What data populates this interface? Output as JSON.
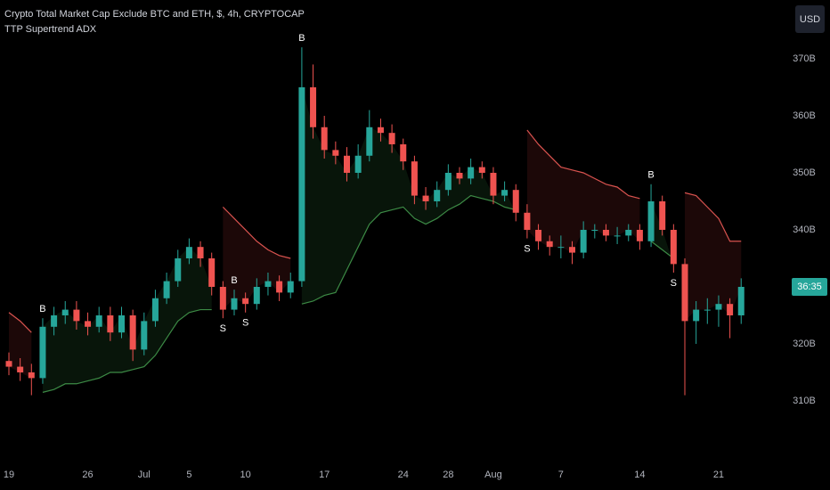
{
  "chart_data": {
    "type": "candlestick",
    "title": "Crypto Total Market Cap Exclude BTC and ETH, $, 4h, CRYPTOCAP",
    "subtitle": "TTP Supertrend ADX",
    "currency_button": "USD",
    "countdown": "36:35",
    "categories": [
      "19",
      null,
      null,
      null,
      null,
      null,
      null,
      "26",
      null,
      null,
      null,
      null,
      "Jul",
      null,
      null,
      null,
      "5",
      null,
      null,
      null,
      null,
      "10",
      null,
      null,
      null,
      null,
      null,
      null,
      "17",
      null,
      null,
      null,
      null,
      null,
      null,
      "24",
      null,
      null,
      null,
      "28",
      null,
      null,
      null,
      "Aug",
      null,
      null,
      null,
      null,
      null,
      "7",
      null,
      null,
      null,
      null,
      null,
      null,
      "14",
      null,
      null,
      null,
      null,
      null,
      null,
      "21",
      null,
      null
    ],
    "open": [
      317,
      316,
      315,
      314,
      323,
      325,
      326,
      324,
      323,
      325,
      322,
      325,
      319,
      324,
      328,
      331,
      335,
      337,
      335,
      330,
      326,
      328,
      327,
      330,
      331,
      329,
      331,
      365,
      358,
      354,
      353,
      350,
      353,
      358,
      357,
      355,
      352,
      346,
      345,
      347,
      350,
      349,
      351,
      350,
      346,
      347,
      343,
      340,
      338,
      337,
      337,
      336,
      340,
      340,
      339,
      339,
      340,
      338,
      345,
      340,
      334,
      324,
      326,
      326,
      327,
      325
    ],
    "high": [
      318.5,
      317.5,
      316.5,
      324.5,
      326.5,
      327.5,
      327.5,
      325.5,
      326.5,
      326.5,
      326.5,
      326,
      325.5,
      329.5,
      332.5,
      336.5,
      338.5,
      338,
      336,
      331,
      329.5,
      329,
      331.5,
      332.5,
      332,
      332.5,
      372,
      369,
      360,
      355.5,
      354.5,
      355,
      361,
      359.5,
      358.5,
      356,
      353,
      347.5,
      348.5,
      351.5,
      351,
      352.5,
      352,
      351,
      348.5,
      348,
      344.5,
      341,
      339,
      339,
      338,
      341.5,
      341,
      341,
      340.5,
      341,
      341,
      348,
      346,
      341,
      335,
      327.5,
      328,
      328.5,
      328,
      331.5
    ],
    "low": [
      314.5,
      313.5,
      311,
      313,
      321.5,
      323.5,
      322.5,
      321.5,
      322,
      320.5,
      321,
      317,
      318,
      323,
      327,
      330,
      334,
      333.5,
      328.5,
      324.5,
      325,
      325.5,
      326,
      328.5,
      327.5,
      328,
      330,
      356,
      352.5,
      351.5,
      348.5,
      349,
      352,
      355.5,
      353.5,
      350.5,
      344.5,
      343.5,
      344,
      346,
      348,
      348,
      349,
      344.5,
      345,
      341.5,
      338.5,
      336.5,
      335.5,
      335,
      334,
      335,
      338.5,
      338,
      337.5,
      338,
      336.5,
      337,
      339,
      332.5,
      311,
      320,
      323.5,
      323,
      321,
      323.5
    ],
    "close": [
      316,
      315,
      314,
      323,
      325,
      326,
      324,
      323,
      325,
      322,
      325,
      319,
      324,
      328,
      331,
      335,
      337,
      335,
      330,
      326,
      328,
      327,
      330,
      331,
      329,
      331,
      365,
      358,
      354,
      353,
      350,
      353,
      358,
      357,
      355,
      352,
      346,
      345,
      347,
      350,
      349,
      351,
      350,
      346,
      347,
      343,
      340,
      338,
      337,
      337,
      336,
      340,
      340,
      339,
      339,
      340,
      338,
      345,
      340,
      334,
      324,
      326,
      326,
      327,
      325,
      330
    ],
    "up_color": "#26a69a",
    "down_color": "#ef5350",
    "supertrend_up": {
      "color": "#3c8a45",
      "fill": "rgba(60,160,80,0.13)",
      "values": [
        null,
        null,
        null,
        311.5,
        312,
        313,
        313,
        313.5,
        314,
        315,
        315,
        315.5,
        316,
        318,
        321,
        324,
        325.5,
        326,
        326,
        null,
        null,
        null,
        null,
        null,
        null,
        null,
        327,
        327.5,
        328.5,
        329,
        333,
        337,
        341,
        343,
        343.5,
        344,
        342,
        341,
        342,
        343.5,
        344.5,
        346,
        345.5,
        345,
        344,
        343.5,
        null,
        null,
        null,
        null,
        null,
        null,
        null,
        null,
        null,
        null,
        null,
        338,
        336.5,
        335,
        null,
        null,
        null,
        null,
        null,
        null
      ]
    },
    "supertrend_down": {
      "color": "#d9534f",
      "fill": "rgba(200,60,60,0.14)",
      "values": [
        325.5,
        324,
        322,
        null,
        null,
        null,
        null,
        null,
        null,
        null,
        null,
        null,
        null,
        null,
        null,
        null,
        null,
        null,
        null,
        344,
        342,
        340,
        338,
        336.5,
        335.5,
        335,
        null,
        null,
        null,
        null,
        null,
        null,
        null,
        null,
        null,
        null,
        null,
        null,
        null,
        null,
        null,
        null,
        null,
        null,
        null,
        null,
        357.5,
        355,
        353,
        351,
        350.5,
        350,
        349,
        348,
        347.5,
        346,
        345.5,
        null,
        null,
        null,
        346.5,
        346,
        344,
        342,
        338,
        338
      ]
    },
    "signals": [
      null,
      null,
      null,
      "B",
      null,
      null,
      null,
      null,
      null,
      null,
      null,
      null,
      null,
      null,
      null,
      null,
      null,
      null,
      null,
      "S",
      "B",
      "S",
      null,
      null,
      null,
      null,
      "B",
      null,
      null,
      null,
      null,
      null,
      null,
      null,
      null,
      null,
      null,
      null,
      null,
      null,
      null,
      null,
      null,
      null,
      null,
      null,
      "S",
      null,
      null,
      null,
      null,
      null,
      null,
      null,
      null,
      null,
      null,
      "B",
      null,
      "S",
      null,
      null,
      null,
      null,
      null,
      null
    ],
    "ylim": [
      299.06,
      380.31
    ],
    "yticks": [
      {
        "value": 310,
        "label": "310B"
      },
      {
        "value": 320,
        "label": "320B"
      },
      {
        "value": 340,
        "label": "340B"
      },
      {
        "value": 350,
        "label": "350B"
      },
      {
        "value": 360,
        "label": "360B"
      },
      {
        "value": 370,
        "label": "370B"
      }
    ]
  }
}
